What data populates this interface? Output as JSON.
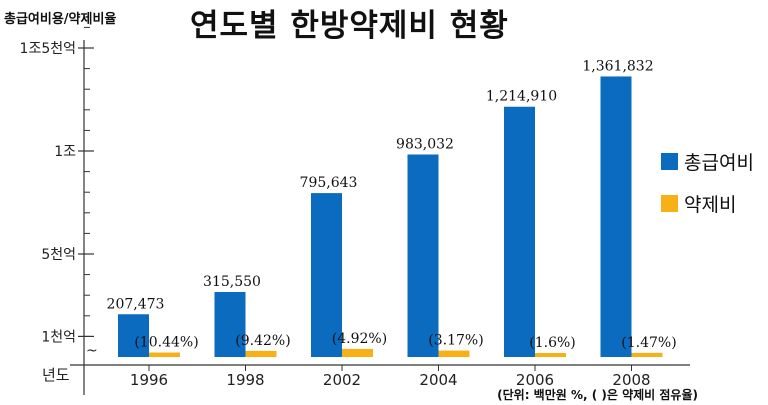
{
  "chart_data": {
    "type": "bar",
    "title": "연도별 한방약제비 현황",
    "ylabel": "총급여비용/약제비율",
    "xlabel": "년도",
    "unit_note": "(단위: 백만원 %, ( )은 약제비 점유율)",
    "categories": [
      "1996",
      "1998",
      "2002",
      "2004",
      "2006",
      "2008"
    ],
    "y_tick_labels": [
      "1천억",
      "5천억",
      "1조",
      "1조5천억"
    ],
    "y_tick_values": [
      100000,
      500000,
      1000000,
      1500000
    ],
    "ylim": [
      -50000,
      1700000
    ],
    "series": [
      {
        "name": "총급여비",
        "color": "#0a6bbf",
        "values": [
          207473,
          315550,
          795643,
          983032,
          1214910,
          1361832
        ],
        "labels": [
          "207,473",
          "315,550",
          "795,643",
          "983,032",
          "1,214,910",
          "1,361,832"
        ]
      },
      {
        "name": "약제비",
        "color": "#f7b116",
        "values": [
          21660,
          29725,
          39146,
          31162,
          19439,
          20019
        ],
        "labels": [
          "(10.44%)",
          "(9.42%)",
          "(4.92%)",
          "(3.17%)",
          "(1.6%)",
          "(1.47%)"
        ]
      }
    ],
    "axis_break": "~",
    "legend_position": "right",
    "grid": false
  }
}
